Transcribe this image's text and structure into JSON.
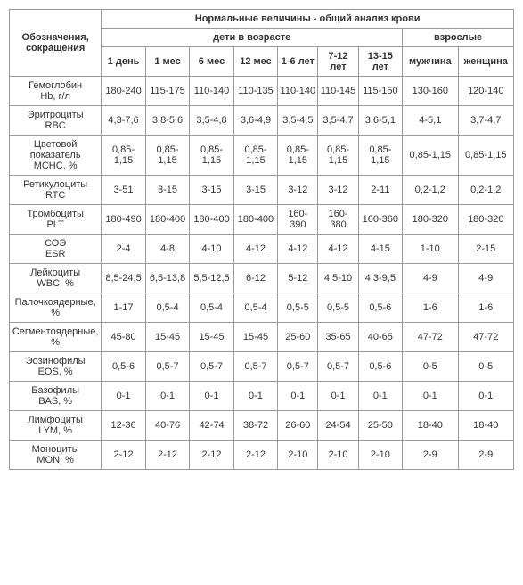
{
  "header": {
    "col0": "Обозначения, сокращения",
    "top": "Нормальные величины - общий анализ крови",
    "children_group": "дети в возрасте",
    "adults_group": "взрослые",
    "cols": [
      "1 день",
      "1 мес",
      "6 мес",
      "12 мес",
      "1-6 лет",
      "7-12 лет",
      "13-15 лет",
      "мужчина",
      "женщина"
    ]
  },
  "rows": [
    {
      "label_1": "Гемоглобин",
      "label_2": "Hb, г/л",
      "v": [
        "180-240",
        "115-175",
        "110-140",
        "110-135",
        "110-140",
        "110-145",
        "115-150",
        "130-160",
        "120-140"
      ]
    },
    {
      "label_1": "Эритроциты",
      "label_2": "RBC",
      "v": [
        "4,3-7,6",
        "3,8-5,6",
        "3,5-4,8",
        "3,6-4,9",
        "3,5-4,5",
        "3,5-4,7",
        "3,6-5,1",
        "4-5,1",
        "3,7-4,7"
      ]
    },
    {
      "label_1": "Цветовой показатель",
      "label_2": "MCHC, %",
      "v": [
        "0,85-1,15",
        "0,85-1,15",
        "0,85-1,15",
        "0,85-1,15",
        "0,85-1,15",
        "0,85-1,15",
        "0,85-1,15",
        "0,85-1,15",
        "0,85-1,15"
      ]
    },
    {
      "label_1": "Ретикулоциты",
      "label_2": "RTC",
      "v": [
        "3-51",
        "3-15",
        "3-15",
        "3-15",
        "3-12",
        "3-12",
        "2-11",
        "0,2-1,2",
        "0,2-1,2"
      ]
    },
    {
      "label_1": "Тромбоциты",
      "label_2": "PLT",
      "v": [
        "180-490",
        "180-400",
        "180-400",
        "180-400",
        "160-390",
        "160-380",
        "160-360",
        "180-320",
        "180-320"
      ]
    },
    {
      "label_1": "СОЭ",
      "label_2": "ESR",
      "v": [
        "2-4",
        "4-8",
        "4-10",
        "4-12",
        "4-12",
        "4-12",
        "4-15",
        "1-10",
        "2-15"
      ]
    },
    {
      "label_1": "Лейкоциты",
      "label_2": "WBC, %",
      "v": [
        "8,5-24,5",
        "6,5-13,8",
        "5,5-12,5",
        "6-12",
        "5-12",
        "4,5-10",
        "4,3-9,5",
        "4-9",
        "4-9"
      ]
    },
    {
      "label_1": "Палочкоядерные,",
      "label_2": "%",
      "v": [
        "1-17",
        "0,5-4",
        "0,5-4",
        "0,5-4",
        "0,5-5",
        "0,5-5",
        "0,5-6",
        "1-6",
        "1-6"
      ]
    },
    {
      "label_1": "Сегментоядерные,",
      "label_2": "%",
      "v": [
        "45-80",
        "15-45",
        "15-45",
        "15-45",
        "25-60",
        "35-65",
        "40-65",
        "47-72",
        "47-72"
      ]
    },
    {
      "label_1": "Эозинофилы",
      "label_2": "EOS, %",
      "v": [
        "0,5-6",
        "0,5-7",
        "0,5-7",
        "0,5-7",
        "0,5-7",
        "0,5-7",
        "0,5-6",
        "0-5",
        "0-5"
      ]
    },
    {
      "label_1": "Базофилы",
      "label_2": "BAS, %",
      "v": [
        "0-1",
        "0-1",
        "0-1",
        "0-1",
        "0-1",
        "0-1",
        "0-1",
        "0-1",
        "0-1"
      ]
    },
    {
      "label_1": "Лимфоциты",
      "label_2": "LYM, %",
      "v": [
        "12-36",
        "40-76",
        "42-74",
        "38-72",
        "26-60",
        "24-54",
        "25-50",
        "18-40",
        "18-40"
      ]
    },
    {
      "label_1": "Моноциты",
      "label_2": "MON, %",
      "v": [
        "2-12",
        "2-12",
        "2-12",
        "2-12",
        "2-10",
        "2-10",
        "2-10",
        "2-9",
        "2-9"
      ]
    }
  ],
  "style": {
    "border_color": "#999999",
    "text_color": "#333333",
    "font_size_pt": 8,
    "background": "#ffffff"
  }
}
